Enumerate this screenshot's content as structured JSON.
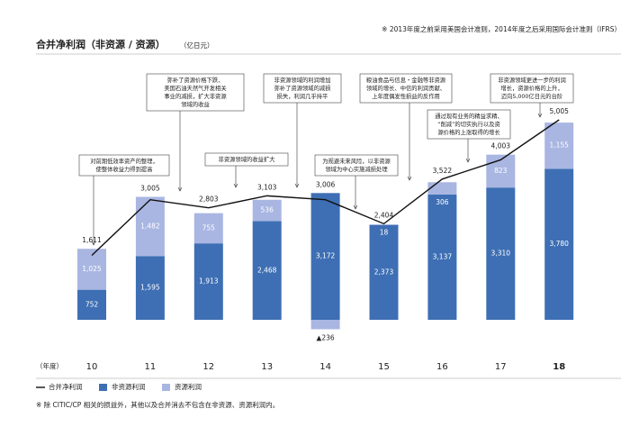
{
  "chart_data": {
    "type": "bar",
    "stacked": true,
    "note": "※ 2013年度之前采用美国会计准则，2014年度之后采用国际会计准则（IFRS）",
    "title": "合并净利润（非资源 / 资源）",
    "unit": "（亿日元）",
    "x_label": "（年度）",
    "categories": [
      "10",
      "11",
      "12",
      "13",
      "14",
      "15",
      "16",
      "17",
      "18"
    ],
    "series": [
      {
        "name": "非资源利润",
        "color": "#3e6fb4",
        "values": [
          752,
          1595,
          1913,
          2468,
          3172,
          2373,
          3137,
          3310,
          3780
        ],
        "value_labels": [
          "752",
          "1,595",
          "1,913",
          "2,468",
          "3,172",
          "2,373",
          "3,137",
          "3,310",
          "3,780"
        ]
      },
      {
        "name": "资源利润",
        "color": "#a9b6e2",
        "values": [
          1025,
          1482,
          755,
          536,
          -236,
          18,
          306,
          823,
          1155
        ],
        "value_labels": [
          "1,025",
          "1,482",
          "755",
          "536",
          "▲236",
          "18",
          "306",
          "823",
          "1,155"
        ]
      },
      {
        "name": "合并净利润",
        "type": "line",
        "color": "#111111",
        "values": [
          1611,
          3005,
          2803,
          3103,
          3006,
          2404,
          3522,
          4003,
          5005
        ],
        "value_labels": [
          "1,611",
          "3,005",
          "2,803",
          "3,103",
          "3,006",
          "2,404",
          "3,522",
          "4,003",
          "5,005"
        ]
      }
    ],
    "annotations": [
      [
        "对前期低效率资产的整理，",
        "使整体收益力得到提高"
      ],
      [
        "弥补了资源价格下跌、",
        "美国石油天然气开发相关",
        "事业的减损，扩大非资源",
        "领域的收益"
      ],
      [
        "非资源领域的收益扩大"
      ],
      [
        "非资源领域的利润增加",
        "弥补了资源领域的减损",
        "损失，利润几乎持平"
      ],
      [
        "为规避未来风险，以非资源",
        "领域为中心实施减损处理"
      ],
      [
        "粮油食品与信息・金融等非资源",
        "领域的增长、中信的利润贡献、",
        "上年度偶发性损益的反作用"
      ],
      [
        "通过现有业务的精益求精、",
        "“削减”的切实执行以及资",
        "源价格的上涨取得的增长"
      ],
      [
        "非资源领域更进一步的利润",
        "增长，资源价格的上升，",
        "迈向5,000亿日元的台阶"
      ]
    ],
    "footnote": "※ 除 CITIC/CP 相关的损益外，其他以及合并消去不包含在非资源、资源利润内。"
  }
}
